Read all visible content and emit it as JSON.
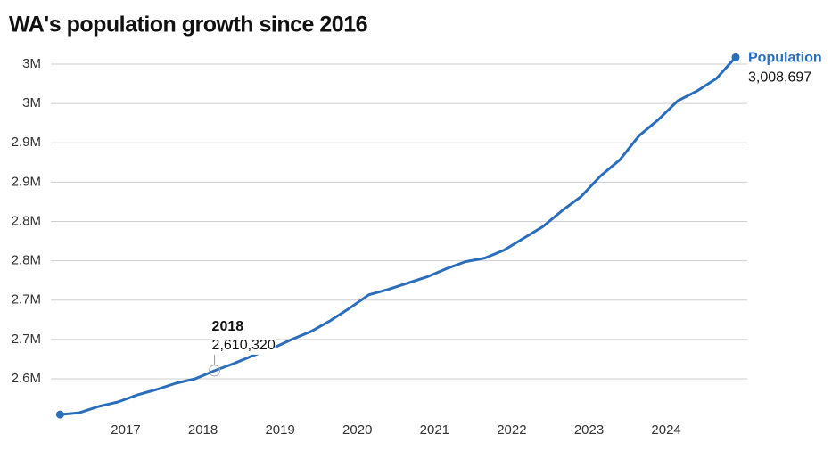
{
  "chart_data": {
    "type": "line",
    "title": "WA's population growth since 2016",
    "x": [
      2016.15,
      2016.4,
      2016.65,
      2016.9,
      2017.15,
      2017.4,
      2017.65,
      2017.9,
      2018.15,
      2018.4,
      2018.65,
      2018.9,
      2019.15,
      2019.4,
      2019.65,
      2019.9,
      2020.15,
      2020.4,
      2020.65,
      2020.9,
      2021.15,
      2021.4,
      2021.65,
      2021.9,
      2022.15,
      2022.4,
      2022.65,
      2022.9,
      2023.15,
      2023.4,
      2023.65,
      2023.9,
      2024.15,
      2024.4,
      2024.65,
      2024.9
    ],
    "series": [
      {
        "name": "Population",
        "color": "#2a6ebb",
        "values": [
          2554500,
          2556800,
          2564800,
          2570500,
          2579500,
          2586400,
          2594300,
          2600000,
          2610320,
          2619300,
          2629500,
          2638600,
          2650000,
          2660200,
          2673900,
          2689800,
          2706800,
          2713600,
          2721600,
          2729500,
          2739800,
          2748900,
          2753400,
          2763600,
          2778400,
          2793200,
          2813600,
          2831800,
          2857900,
          2878400,
          2909100,
          2929500,
          2953400,
          2965900,
          2981800,
          3008697
        ],
        "value_labels": [
          null,
          null,
          null,
          null,
          null,
          null,
          null,
          null,
          "2,610,320",
          null,
          null,
          null,
          null,
          null,
          null,
          null,
          null,
          null,
          null,
          null,
          null,
          null,
          null,
          null,
          null,
          null,
          null,
          null,
          null,
          null,
          null,
          null,
          null,
          null,
          null,
          "3,008,697"
        ]
      }
    ],
    "annotations": [
      {
        "x": 2018.15,
        "label": "2018"
      }
    ],
    "xlim": [
      2016.03,
      2025.05
    ],
    "xticks": [
      2017,
      2018,
      2019,
      2020,
      2021,
      2022,
      2023,
      2024
    ],
    "ylim": [
      2550000,
      3012000
    ],
    "yticks": [
      {
        "value": 2600000,
        "label": "2.6M"
      },
      {
        "value": 2650000,
        "label": "2.7M"
      },
      {
        "value": 2700000,
        "label": "2.7M"
      },
      {
        "value": 2750000,
        "label": "2.8M"
      },
      {
        "value": 2800000,
        "label": "2.8M"
      },
      {
        "value": 2850000,
        "label": "2.9M"
      },
      {
        "value": 2900000,
        "label": "2.9M"
      },
      {
        "value": 2950000,
        "label": "3M"
      },
      {
        "value": 3000000,
        "label": "3M"
      }
    ],
    "grid": true
  }
}
